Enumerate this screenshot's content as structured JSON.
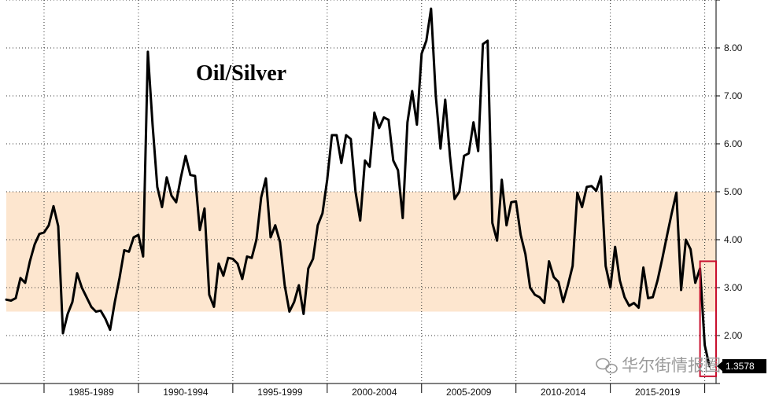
{
  "chart_data": {
    "type": "line",
    "title": "Oil/Silver",
    "xlabel": "",
    "ylabel": "",
    "x_tick_labels": [
      "1985-1989",
      "1990-1994",
      "1995-1999",
      "2000-2004",
      "2005-2009",
      "2010-2014",
      "2015-2019"
    ],
    "y_tick_labels": [
      "2.00",
      "3.00",
      "4.00",
      "5.00",
      "6.00",
      "7.00",
      "8.00"
    ],
    "xlim": [
      1983.0,
      2020.6
    ],
    "ylim": [
      1.0,
      9.0
    ],
    "y_axis_position": "right",
    "grid": true,
    "shaded_band": {
      "from": 2.5,
      "to": 5.0,
      "color": "#fde6cf"
    },
    "highlight_box": {
      "x": [
        2019.75,
        2020.6
      ],
      "y": [
        1.15,
        3.55
      ],
      "color": "#c8102e"
    },
    "last_value_label": "1.3578",
    "line_color": "#000000",
    "series": [
      {
        "name": "",
        "x": [
          1983.0,
          1983.25,
          1983.5,
          1983.75,
          1984.0,
          1984.25,
          1984.5,
          1984.75,
          1985.0,
          1985.25,
          1985.5,
          1985.75,
          1986.0,
          1986.25,
          1986.5,
          1986.75,
          1987.0,
          1987.25,
          1987.5,
          1987.75,
          1988.0,
          1988.25,
          1988.5,
          1988.75,
          1989.0,
          1989.25,
          1989.5,
          1989.75,
          1990.0,
          1990.25,
          1990.5,
          1990.75,
          1991.0,
          1991.25,
          1991.5,
          1991.75,
          1992.0,
          1992.25,
          1992.5,
          1992.75,
          1993.0,
          1993.25,
          1993.5,
          1993.75,
          1994.0,
          1994.25,
          1994.5,
          1994.75,
          1995.0,
          1995.25,
          1995.5,
          1995.75,
          1996.0,
          1996.25,
          1996.5,
          1996.75,
          1997.0,
          1997.25,
          1997.5,
          1997.75,
          1998.0,
          1998.25,
          1998.5,
          1998.75,
          1999.0,
          1999.25,
          1999.5,
          1999.75,
          2000.0,
          2000.25,
          2000.5,
          2000.75,
          2001.0,
          2001.25,
          2001.5,
          2001.75,
          2002.0,
          2002.25,
          2002.5,
          2002.75,
          2003.0,
          2003.25,
          2003.5,
          2003.75,
          2004.0,
          2004.25,
          2004.5,
          2004.75,
          2005.0,
          2005.25,
          2005.5,
          2005.75,
          2006.0,
          2006.25,
          2006.5,
          2006.75,
          2007.0,
          2007.25,
          2007.5,
          2007.75,
          2008.0,
          2008.25,
          2008.5,
          2008.75,
          2009.0,
          2009.25,
          2009.5,
          2009.75,
          2010.0,
          2010.25,
          2010.5,
          2010.75,
          2011.0,
          2011.25,
          2011.5,
          2011.75,
          2012.0,
          2012.25,
          2012.5,
          2012.75,
          2013.0,
          2013.25,
          2013.5,
          2013.75,
          2014.0,
          2014.25,
          2014.5,
          2014.75,
          2015.0,
          2015.25,
          2015.5,
          2015.75,
          2016.0,
          2016.25,
          2016.5,
          2016.75,
          2017.0,
          2017.25,
          2017.5,
          2017.75,
          2018.0,
          2018.25,
          2018.5,
          2018.75,
          2019.0,
          2019.25,
          2019.5,
          2019.75,
          2020.0,
          2020.25
        ],
        "y": [
          2.75,
          2.73,
          2.78,
          3.2,
          3.1,
          3.55,
          3.9,
          4.12,
          4.15,
          4.3,
          4.7,
          4.28,
          2.05,
          2.45,
          2.7,
          3.3,
          3.0,
          2.8,
          2.6,
          2.5,
          2.52,
          2.35,
          2.12,
          2.7,
          3.2,
          3.78,
          3.75,
          4.05,
          4.1,
          3.65,
          7.92,
          6.4,
          5.1,
          4.68,
          5.3,
          4.92,
          4.78,
          5.3,
          5.75,
          5.35,
          5.33,
          4.2,
          4.65,
          2.85,
          2.6,
          3.5,
          3.25,
          3.62,
          3.6,
          3.5,
          3.18,
          3.65,
          3.62,
          4.0,
          4.88,
          5.28,
          4.05,
          4.3,
          3.95,
          3.05,
          2.5,
          2.7,
          3.05,
          2.45,
          3.4,
          3.6,
          4.3,
          4.55,
          5.25,
          6.18,
          6.18,
          5.6,
          6.18,
          6.1,
          5.0,
          4.4,
          5.65,
          5.52,
          6.65,
          6.33,
          6.55,
          6.5,
          5.65,
          5.45,
          4.45,
          6.45,
          7.1,
          6.4,
          7.88,
          8.15,
          8.82,
          7.0,
          5.9,
          6.92,
          5.75,
          4.85,
          5.0,
          5.75,
          5.8,
          6.45,
          5.85,
          8.08,
          8.15,
          4.35,
          3.98,
          5.25,
          4.3,
          4.78,
          4.8,
          4.1,
          3.7,
          3.0,
          2.85,
          2.8,
          2.68,
          3.55,
          3.22,
          3.12,
          2.7,
          3.05,
          3.45,
          4.98,
          4.68,
          5.1,
          5.12,
          5.02,
          5.32,
          3.45,
          3.0,
          3.85,
          3.15,
          2.8,
          2.62,
          2.68,
          2.58,
          3.42,
          2.78,
          2.8,
          3.15,
          3.6,
          4.08,
          4.55,
          4.98,
          2.95,
          4.0,
          3.8,
          3.1,
          3.4,
          1.8,
          1.36
        ]
      }
    ]
  },
  "watermark": "华尔街情报圈"
}
